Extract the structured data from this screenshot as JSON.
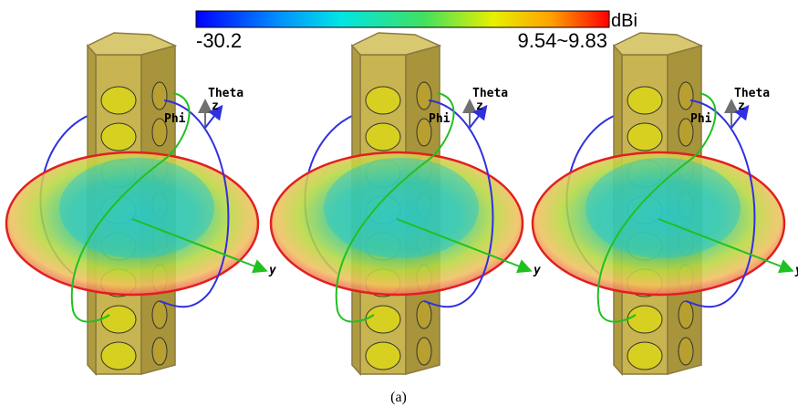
{
  "colorbar": {
    "unit": "dBi",
    "min_label": "-30.2",
    "max_label": "9.54~9.83"
  },
  "panels": [
    {
      "theta": "Theta",
      "z": "z",
      "phi": "Phi",
      "y": "y"
    },
    {
      "theta": "Theta",
      "z": "z",
      "phi": "Phi",
      "y": "y"
    },
    {
      "theta": "Theta",
      "z": "z",
      "phi": "Phi",
      "y": "y"
    }
  ],
  "caption": "(a)"
}
